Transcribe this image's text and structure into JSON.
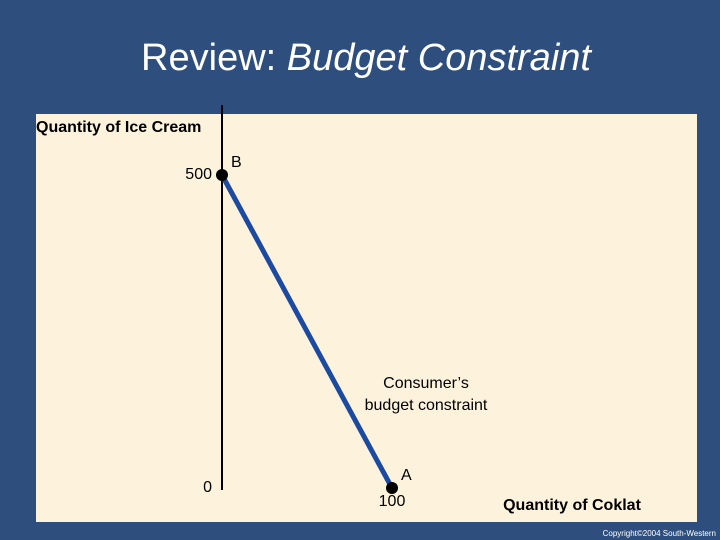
{
  "chart_data": {
    "type": "line",
    "title": [
      "Review:",
      "Budget Constraint"
    ],
    "y_label": "Quantity of Ice Cream",
    "x_label": "Quantity of Coklat",
    "series": [
      {
        "x": [
          0,
          100
        ],
        "values": [
          500,
          0
        ],
        "point_labels": [
          "B",
          "A"
        ],
        "color": "#1c4aa0"
      }
    ],
    "marker_color": "#000000",
    "xlim": [
      0,
      280
    ],
    "ylim": [
      0,
      600
    ],
    "xticks": [
      100
    ],
    "yticks": [
      0,
      500
    ],
    "annotation": [
      "Consumer’s",
      "budget constraint"
    ],
    "footer": "Copyright©2004  South-Western"
  }
}
